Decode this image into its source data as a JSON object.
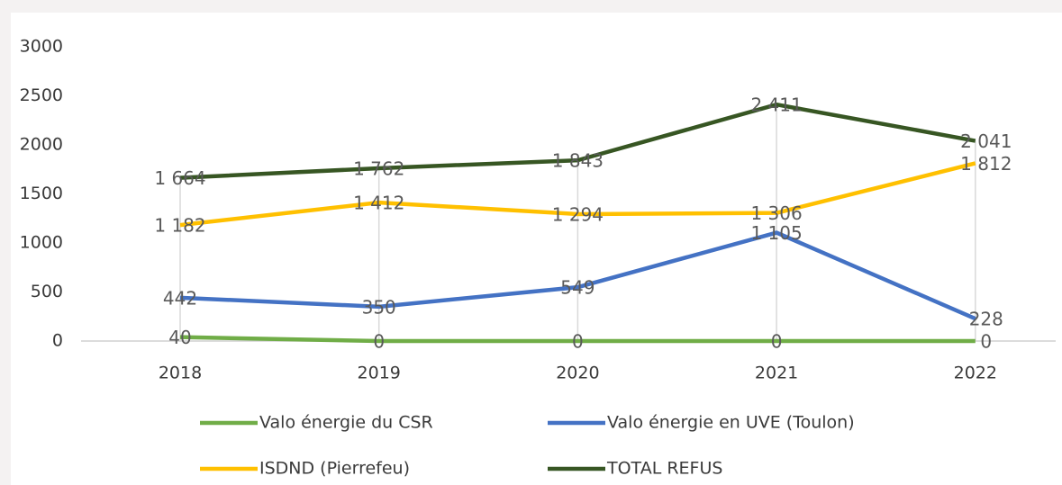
{
  "chart_data": {
    "type": "line",
    "categories": [
      "2018",
      "2019",
      "2020",
      "2021",
      "2022"
    ],
    "series": [
      {
        "name": "Valo énergie du CSR",
        "color": "#70ad47",
        "values": [
          40,
          0,
          0,
          0,
          0
        ],
        "value_labels": [
          "40",
          "0",
          "0",
          "0",
          "0"
        ]
      },
      {
        "name": "Valo énergie en UVE (Toulon)",
        "color": "#4472c4",
        "values": [
          442,
          350,
          549,
          1105,
          228
        ],
        "value_labels": [
          "442",
          "350",
          "549",
          "1 105",
          "228"
        ]
      },
      {
        "name": "ISDND (Pierrefeu)",
        "color": "#ffc000",
        "values": [
          1182,
          1412,
          1294,
          1306,
          1812
        ],
        "value_labels": [
          "1 182",
          "1 412",
          "1 294",
          "1 306",
          "1 812"
        ]
      },
      {
        "name": "TOTAL REFUS",
        "color": "#375623",
        "values": [
          1664,
          1762,
          1843,
          2411,
          2041
        ],
        "value_labels": [
          "1 664",
          "1 762",
          "1 843",
          "2 411",
          "2 041"
        ]
      }
    ],
    "ylim": [
      0,
      3000
    ],
    "yticks": [
      0,
      500,
      1000,
      1500,
      2000,
      2500,
      3000
    ],
    "grid": false,
    "legend": "bottom"
  }
}
